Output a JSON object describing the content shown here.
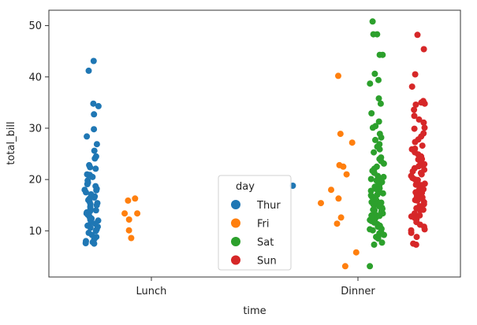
{
  "chart_data": {
    "type": "scatter",
    "title": "",
    "xlabel": "time",
    "ylabel": "total_bill",
    "categories": [
      "Lunch",
      "Dinner"
    ],
    "ylim": [
      1,
      53
    ],
    "yticks": [
      10,
      20,
      30,
      40,
      50
    ],
    "grid": false,
    "legend": {
      "title": "day",
      "placement": "lower center",
      "entries": [
        "Thur",
        "Fri",
        "Sat",
        "Sun"
      ]
    },
    "colors": {
      "Thur": "#1f77b4",
      "Fri": "#ff7f0e",
      "Sat": "#2ca02c",
      "Sun": "#d62728"
    },
    "series": [
      {
        "name": "Thur",
        "points": [
          [
            "Lunch",
            43.1
          ],
          [
            "Lunch",
            41.2
          ],
          [
            "Lunch",
            34.8
          ],
          [
            "Lunch",
            34.3
          ],
          [
            "Lunch",
            32.7
          ],
          [
            "Lunch",
            29.8
          ],
          [
            "Lunch",
            28.4
          ],
          [
            "Lunch",
            26.9
          ],
          [
            "Lunch",
            25.6
          ],
          [
            "Lunch",
            24.5
          ],
          [
            "Lunch",
            24.1
          ],
          [
            "Lunch",
            22.8
          ],
          [
            "Lunch",
            22.1
          ],
          [
            "Lunch",
            21.0
          ],
          [
            "Lunch",
            20.5
          ],
          [
            "Lunch",
            19.8
          ],
          [
            "Lunch",
            19.1
          ],
          [
            "Lunch",
            18.7
          ],
          [
            "Lunch",
            18.2
          ],
          [
            "Lunch",
            17.9
          ],
          [
            "Lunch",
            17.5
          ],
          [
            "Lunch",
            17.1
          ],
          [
            "Lunch",
            16.7
          ],
          [
            "Lunch",
            16.3
          ],
          [
            "Lunch",
            16.0
          ],
          [
            "Lunch",
            15.7
          ],
          [
            "Lunch",
            15.4
          ],
          [
            "Lunch",
            15.0
          ],
          [
            "Lunch",
            14.7
          ],
          [
            "Lunch",
            14.3
          ],
          [
            "Lunch",
            14.0
          ],
          [
            "Lunch",
            13.6
          ],
          [
            "Lunch",
            13.4
          ],
          [
            "Lunch",
            13.0
          ],
          [
            "Lunch",
            12.7
          ],
          [
            "Lunch",
            12.4
          ],
          [
            "Lunch",
            12.0
          ],
          [
            "Lunch",
            11.7
          ],
          [
            "Lunch",
            11.4
          ],
          [
            "Lunch",
            11.0
          ],
          [
            "Lunch",
            10.6
          ],
          [
            "Lunch",
            10.3
          ],
          [
            "Lunch",
            10.0
          ],
          [
            "Lunch",
            9.6
          ],
          [
            "Lunch",
            9.2
          ],
          [
            "Lunch",
            8.8
          ],
          [
            "Lunch",
            8.4
          ],
          [
            "Lunch",
            8.0
          ],
          [
            "Lunch",
            7.8
          ],
          [
            "Lunch",
            7.6
          ],
          [
            "Lunch",
            7.5
          ],
          [
            "Lunch",
            13.8
          ],
          [
            "Lunch",
            16.5
          ],
          [
            "Lunch",
            19.4
          ],
          [
            "Lunch",
            20.9
          ],
          [
            "Lunch",
            22.4
          ],
          [
            "Lunch",
            12.2
          ],
          [
            "Lunch",
            10.8
          ],
          [
            "Lunch",
            15.2
          ],
          [
            "Lunch",
            18.0
          ],
          [
            "Lunch",
            13.1
          ],
          [
            "Dinner",
            18.8
          ]
        ]
      },
      {
        "name": "Fri",
        "points": [
          [
            "Lunch",
            16.3
          ],
          [
            "Lunch",
            13.4
          ],
          [
            "Lunch",
            12.2
          ],
          [
            "Lunch",
            10.1
          ],
          [
            "Lunch",
            8.6
          ],
          [
            "Lunch",
            15.9
          ],
          [
            "Lunch",
            13.4
          ],
          [
            "Dinner",
            40.2
          ],
          [
            "Dinner",
            28.9
          ],
          [
            "Dinner",
            27.2
          ],
          [
            "Dinner",
            22.5
          ],
          [
            "Dinner",
            21.0
          ],
          [
            "Dinner",
            15.4
          ],
          [
            "Dinner",
            12.6
          ],
          [
            "Dinner",
            11.4
          ],
          [
            "Dinner",
            22.8
          ],
          [
            "Dinner",
            3.1
          ],
          [
            "Dinner",
            18.0
          ],
          [
            "Dinner",
            16.3
          ],
          [
            "Dinner",
            5.8
          ]
        ]
      },
      {
        "name": "Sat",
        "points": [
          [
            "Dinner",
            50.8
          ],
          [
            "Dinner",
            48.3
          ],
          [
            "Dinner",
            44.3
          ],
          [
            "Dinner",
            39.4
          ],
          [
            "Dinner",
            38.7
          ],
          [
            "Dinner",
            35.8
          ],
          [
            "Dinner",
            31.3
          ],
          [
            "Dinner",
            30.4
          ],
          [
            "Dinner",
            28.2
          ],
          [
            "Dinner",
            26.9
          ],
          [
            "Dinner",
            25.3
          ],
          [
            "Dinner",
            24.3
          ],
          [
            "Dinner",
            23.1
          ],
          [
            "Dinner",
            22.5
          ],
          [
            "Dinner",
            21.7
          ],
          [
            "Dinner",
            20.7
          ],
          [
            "Dinner",
            20.0
          ],
          [
            "Dinner",
            19.5
          ],
          [
            "Dinner",
            18.8
          ],
          [
            "Dinner",
            18.3
          ],
          [
            "Dinner",
            17.8
          ],
          [
            "Dinner",
            17.3
          ],
          [
            "Dinner",
            16.9
          ],
          [
            "Dinner",
            16.4
          ],
          [
            "Dinner",
            16.0
          ],
          [
            "Dinner",
            15.5
          ],
          [
            "Dinner",
            15.0
          ],
          [
            "Dinner",
            14.5
          ],
          [
            "Dinner",
            14.1
          ],
          [
            "Dinner",
            13.6
          ],
          [
            "Dinner",
            13.1
          ],
          [
            "Dinner",
            12.6
          ],
          [
            "Dinner",
            12.1
          ],
          [
            "Dinner",
            11.6
          ],
          [
            "Dinner",
            11.0
          ],
          [
            "Dinner",
            10.4
          ],
          [
            "Dinner",
            9.8
          ],
          [
            "Dinner",
            9.2
          ],
          [
            "Dinner",
            8.5
          ],
          [
            "Dinner",
            7.7
          ],
          [
            "Dinner",
            7.3
          ],
          [
            "Dinner",
            3.1
          ],
          [
            "Dinner",
            48.3
          ],
          [
            "Dinner",
            26.4
          ],
          [
            "Dinner",
            20.3
          ],
          [
            "Dinner",
            19.0
          ],
          [
            "Dinner",
            17.5
          ],
          [
            "Dinner",
            15.8
          ],
          [
            "Dinner",
            14.8
          ],
          [
            "Dinner",
            13.4
          ],
          [
            "Dinner",
            12.9
          ],
          [
            "Dinner",
            11.9
          ],
          [
            "Dinner",
            10.8
          ],
          [
            "Dinner",
            10.1
          ],
          [
            "Dinner",
            9.5
          ],
          [
            "Dinner",
            8.8
          ],
          [
            "Dinner",
            22.1
          ],
          [
            "Dinner",
            24.0
          ],
          [
            "Dinner",
            18.6
          ],
          [
            "Dinner",
            16.2
          ],
          [
            "Dinner",
            15.2
          ],
          [
            "Dinner",
            14.0
          ],
          [
            "Dinner",
            12.4
          ],
          [
            "Dinner",
            11.3
          ],
          [
            "Dinner",
            20.5
          ],
          [
            "Dinner",
            25.9
          ],
          [
            "Dinner",
            17.0
          ],
          [
            "Dinner",
            13.9
          ],
          [
            "Dinner",
            23.6
          ],
          [
            "Dinner",
            21.3
          ],
          [
            "Dinner",
            19.8
          ],
          [
            "Dinner",
            18.1
          ],
          [
            "Dinner",
            16.7
          ],
          [
            "Dinner",
            14.3
          ],
          [
            "Dinner",
            12.0
          ],
          [
            "Dinner",
            10.3
          ],
          [
            "Dinner",
            9.0
          ],
          [
            "Dinner",
            27.7
          ],
          [
            "Dinner",
            20.1
          ],
          [
            "Dinner",
            15.6
          ],
          [
            "Dinner",
            13.0
          ],
          [
            "Dinner",
            32.9
          ],
          [
            "Dinner",
            34.8
          ],
          [
            "Dinner",
            28.9
          ],
          [
            "Dinner",
            44.3
          ],
          [
            "Dinner",
            40.6
          ],
          [
            "Dinner",
            30.1
          ]
        ]
      },
      {
        "name": "Sun",
        "points": [
          [
            "Dinner",
            48.2
          ],
          [
            "Dinner",
            45.4
          ],
          [
            "Dinner",
            40.5
          ],
          [
            "Dinner",
            38.1
          ],
          [
            "Dinner",
            35.3
          ],
          [
            "Dinner",
            34.6
          ],
          [
            "Dinner",
            34.8
          ],
          [
            "Dinner",
            33.6
          ],
          [
            "Dinner",
            32.4
          ],
          [
            "Dinner",
            31.7
          ],
          [
            "Dinner",
            30.1
          ],
          [
            "Dinner",
            29.9
          ],
          [
            "Dinner",
            28.4
          ],
          [
            "Dinner",
            27.3
          ],
          [
            "Dinner",
            26.6
          ],
          [
            "Dinner",
            25.3
          ],
          [
            "Dinner",
            24.9
          ],
          [
            "Dinner",
            24.5
          ],
          [
            "Dinner",
            23.9
          ],
          [
            "Dinner",
            23.3
          ],
          [
            "Dinner",
            22.8
          ],
          [
            "Dinner",
            22.2
          ],
          [
            "Dinner",
            21.6
          ],
          [
            "Dinner",
            21.0
          ],
          [
            "Dinner",
            20.7
          ],
          [
            "Dinner",
            20.3
          ],
          [
            "Dinner",
            19.9
          ],
          [
            "Dinner",
            19.5
          ],
          [
            "Dinner",
            19.0
          ],
          [
            "Dinner",
            18.7
          ],
          [
            "Dinner",
            18.3
          ],
          [
            "Dinner",
            17.9
          ],
          [
            "Dinner",
            17.5
          ],
          [
            "Dinner",
            17.0
          ],
          [
            "Dinner",
            16.6
          ],
          [
            "Dinner",
            16.3
          ],
          [
            "Dinner",
            16.0
          ],
          [
            "Dinner",
            15.6
          ],
          [
            "Dinner",
            15.2
          ],
          [
            "Dinner",
            14.8
          ],
          [
            "Dinner",
            14.4
          ],
          [
            "Dinner",
            14.1
          ],
          [
            "Dinner",
            13.4
          ],
          [
            "Dinner",
            12.8
          ],
          [
            "Dinner",
            12.3
          ],
          [
            "Dinner",
            11.7
          ],
          [
            "Dinner",
            10.8
          ],
          [
            "Dinner",
            10.3
          ],
          [
            "Dinner",
            9.6
          ],
          [
            "Dinner",
            8.8
          ],
          [
            "Dinner",
            7.3
          ],
          [
            "Dinner",
            7.5
          ],
          [
            "Dinner",
            29.0
          ],
          [
            "Dinner",
            26.0
          ],
          [
            "Dinner",
            23.0
          ],
          [
            "Dinner",
            21.3
          ],
          [
            "Dinner",
            19.2
          ],
          [
            "Dinner",
            17.4
          ],
          [
            "Dinner",
            15.9
          ],
          [
            "Dinner",
            14.0
          ],
          [
            "Dinner",
            18.1
          ],
          [
            "Dinner",
            20.0
          ],
          [
            "Dinner",
            24.0
          ],
          [
            "Dinner",
            16.8
          ],
          [
            "Dinner",
            13.0
          ],
          [
            "Dinner",
            22.6
          ],
          [
            "Dinner",
            25.9
          ],
          [
            "Dinner",
            31.1
          ],
          [
            "Dinner",
            35.0
          ],
          [
            "Dinner",
            10.1
          ],
          [
            "Dinner",
            11.2
          ],
          [
            "Dinner",
            12.5
          ],
          [
            "Dinner",
            16.5
          ],
          [
            "Dinner",
            18.9
          ],
          [
            "Dinner",
            21.9
          ],
          [
            "Dinner",
            27.8
          ]
        ]
      }
    ]
  }
}
